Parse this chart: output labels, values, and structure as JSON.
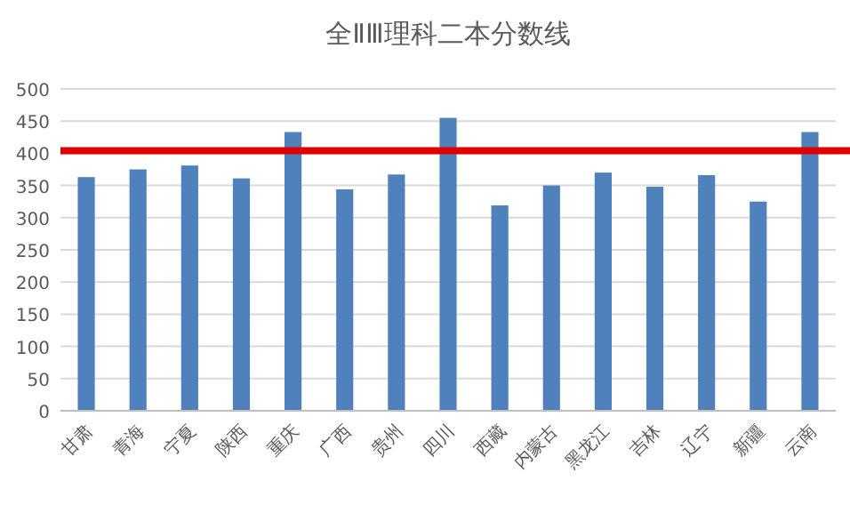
{
  "chart_data": {
    "type": "bar",
    "title": "全ⅡⅢ理科二本分数线",
    "categories": [
      "甘肃",
      "青海",
      "宁夏",
      "陕西",
      "重庆",
      "广西",
      "贵州",
      "四川",
      "西藏",
      "内蒙古",
      "黑龙江",
      "吉林",
      "辽宁",
      "新疆",
      "云南"
    ],
    "values": [
      363,
      375,
      381,
      361,
      433,
      344,
      367,
      455,
      319,
      350,
      370,
      348,
      366,
      325,
      433
    ],
    "color": "#4f81bd",
    "ylim": [
      0,
      500
    ],
    "yticks": [
      0,
      50,
      100,
      150,
      200,
      250,
      300,
      350,
      400,
      450,
      500
    ],
    "grid": "y",
    "ref_lines": [
      {
        "axis": "y",
        "value": 404,
        "color": "#e00000"
      }
    ]
  }
}
